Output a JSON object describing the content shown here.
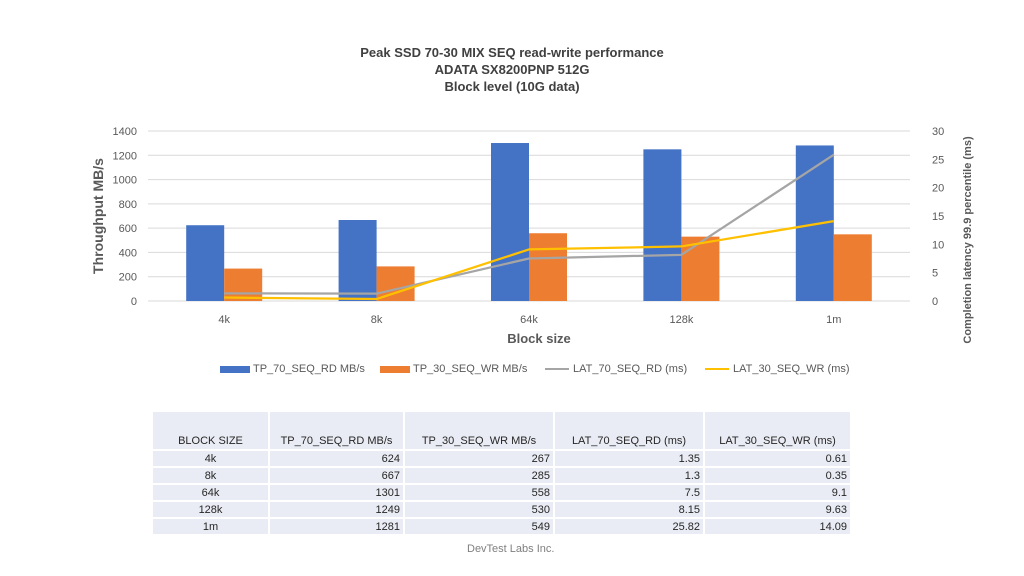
{
  "chart_data": {
    "type": "bar",
    "title": "Peak SSD 70-30 MIX SEQ read-write performance",
    "subtitle_lines": [
      "ADATA SX8200PNP 512G",
      "Block level (10G data)"
    ],
    "xlabel": "Block size",
    "ylabel": "Throughput MB/s",
    "y2label": "Completion latency 99.9 percentile (ms)",
    "categories": [
      "4k",
      "8k",
      "64k",
      "128k",
      "1m"
    ],
    "ylim": [
      0,
      1400
    ],
    "y_ticks": [
      0,
      200,
      400,
      600,
      800,
      1000,
      1200,
      1400
    ],
    "y2lim": [
      0,
      30
    ],
    "y2_ticks": [
      0,
      5,
      10,
      15,
      20,
      25,
      30
    ],
    "grid": true,
    "legend_position": "bottom",
    "series": [
      {
        "name": "TP_70_SEQ_RD MB/s",
        "type": "bar",
        "axis": "left",
        "color": "#4472c4",
        "values": [
          624,
          667,
          1301,
          1249,
          1281
        ]
      },
      {
        "name": "TP_30_SEQ_WR MB/s",
        "type": "bar",
        "axis": "left",
        "color": "#ed7d31",
        "values": [
          267,
          285,
          558,
          530,
          549
        ]
      },
      {
        "name": "LAT_70_SEQ_RD (ms)",
        "type": "line",
        "axis": "right",
        "color": "#a5a5a5",
        "values": [
          1.35,
          1.3,
          7.5,
          8.15,
          25.82
        ]
      },
      {
        "name": "LAT_30_SEQ_WR (ms)",
        "type": "line",
        "axis": "right",
        "color": "#ffc000",
        "values": [
          0.61,
          0.35,
          9.1,
          9.63,
          14.09
        ]
      }
    ]
  },
  "table": {
    "headers": [
      "BLOCK SIZE",
      "TP_70_SEQ_RD MB/s",
      "TP_30_SEQ_WR MB/s",
      "LAT_70_SEQ_RD (ms)",
      "LAT_30_SEQ_WR (ms)"
    ],
    "rows": [
      [
        "4k",
        "624",
        "267",
        "1.35",
        "0.61"
      ],
      [
        "8k",
        "667",
        "285",
        "1.3",
        "0.35"
      ],
      [
        "64k",
        "1301",
        "558",
        "7.5",
        "9.1"
      ],
      [
        "128k",
        "1249",
        "530",
        "8.15",
        "9.63"
      ],
      [
        "1m",
        "1281",
        "549",
        "25.82",
        "14.09"
      ]
    ]
  },
  "footer": "DevTest Labs Inc."
}
